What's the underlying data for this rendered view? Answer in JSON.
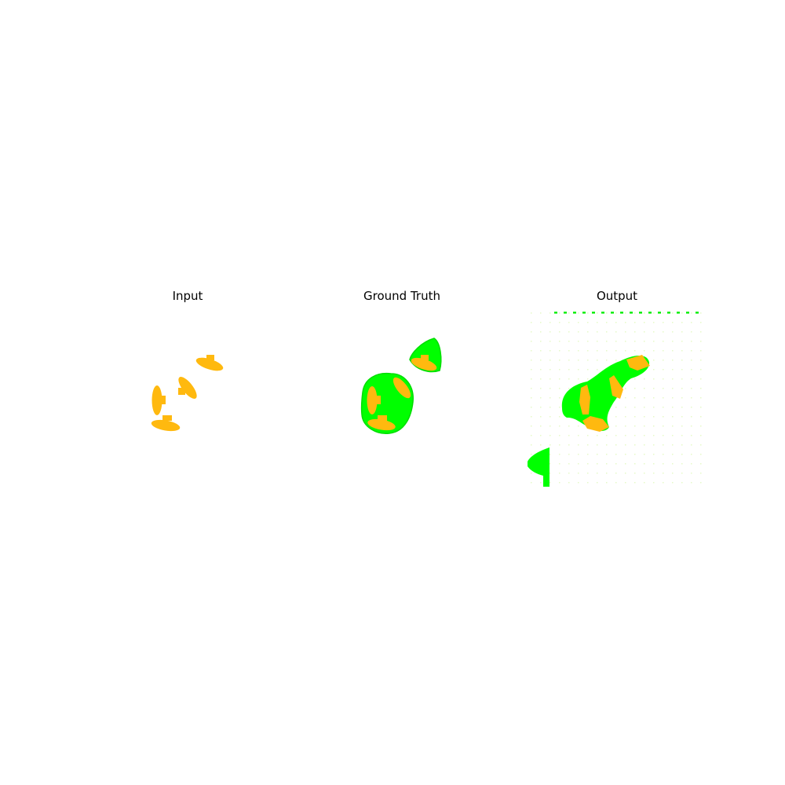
{
  "figure": {
    "colors": {
      "background": "#ffffff",
      "object": "#ffb90f",
      "region": "#00ff00",
      "title_text": "#000000"
    },
    "panels": [
      {
        "key": "input",
        "title": "Input"
      },
      {
        "key": "ground_truth",
        "title": "Ground Truth"
      },
      {
        "key": "output",
        "title": "Output"
      }
    ]
  }
}
